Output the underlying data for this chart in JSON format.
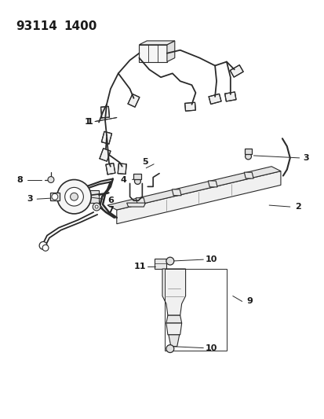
{
  "title1": "93114",
  "title2": "1400",
  "bg_color": "#ffffff",
  "line_color": "#2a2a2a",
  "text_color": "#1a1a1a",
  "lw": 1.0
}
